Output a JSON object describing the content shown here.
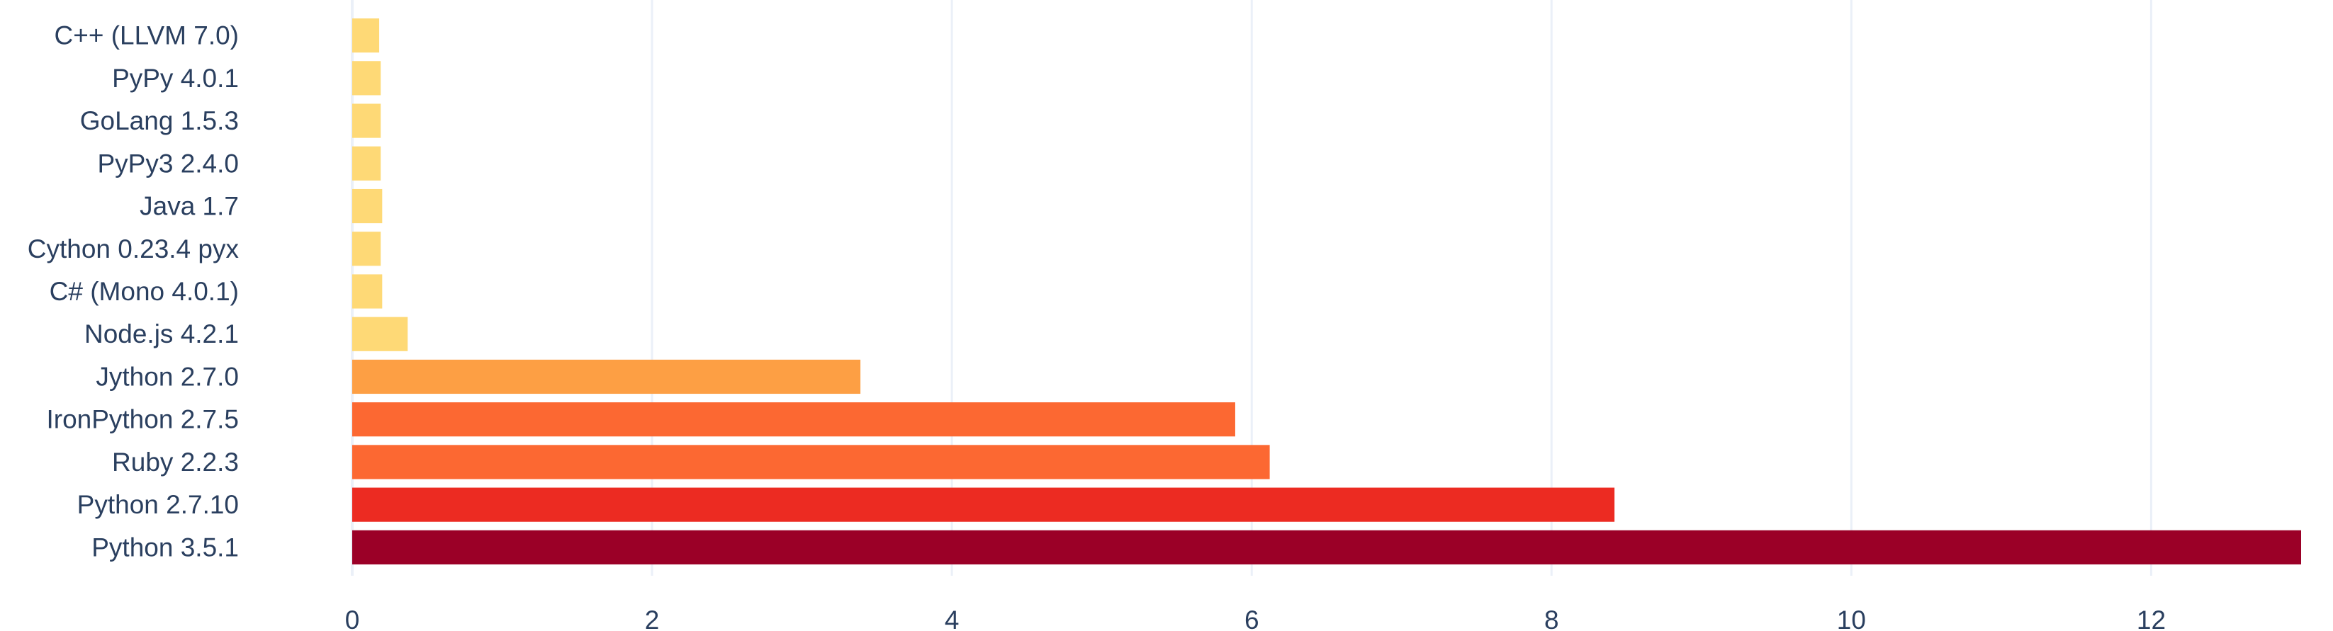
{
  "chart_data": {
    "type": "bar",
    "orientation": "horizontal",
    "categories": [
      "C++ (LLVM 7.0)",
      "PyPy 4.0.1",
      "GoLang 1.5.3",
      "PyPy3 2.4.0",
      "Java 1.7",
      "Cython 0.23.4 pyx",
      "C# (Mono 4.0.1)",
      "Node.js 4.2.1",
      "Jython 2.7.0",
      "IronPython 2.7.5",
      "Ruby 2.2.3",
      "Python 2.7.10",
      "Python 3.5.1"
    ],
    "values": [
      0.18,
      0.19,
      0.19,
      0.19,
      0.2,
      0.19,
      0.2,
      0.37,
      3.39,
      5.89,
      6.12,
      8.42,
      13.0
    ],
    "colors": [
      "#fed976",
      "#fed976",
      "#fed976",
      "#fed976",
      "#fed976",
      "#fed976",
      "#fed976",
      "#fed976",
      "#fd9f44",
      "#fc6832",
      "#fc6832",
      "#ec2b22",
      "#9b0027"
    ],
    "title": "",
    "xlabel": "",
    "ylabel": "",
    "xlim": [
      0,
      13
    ],
    "xticks": [
      "0",
      "2",
      "4",
      "6",
      "8",
      "10",
      "12"
    ],
    "grid": true,
    "legend": "none"
  }
}
